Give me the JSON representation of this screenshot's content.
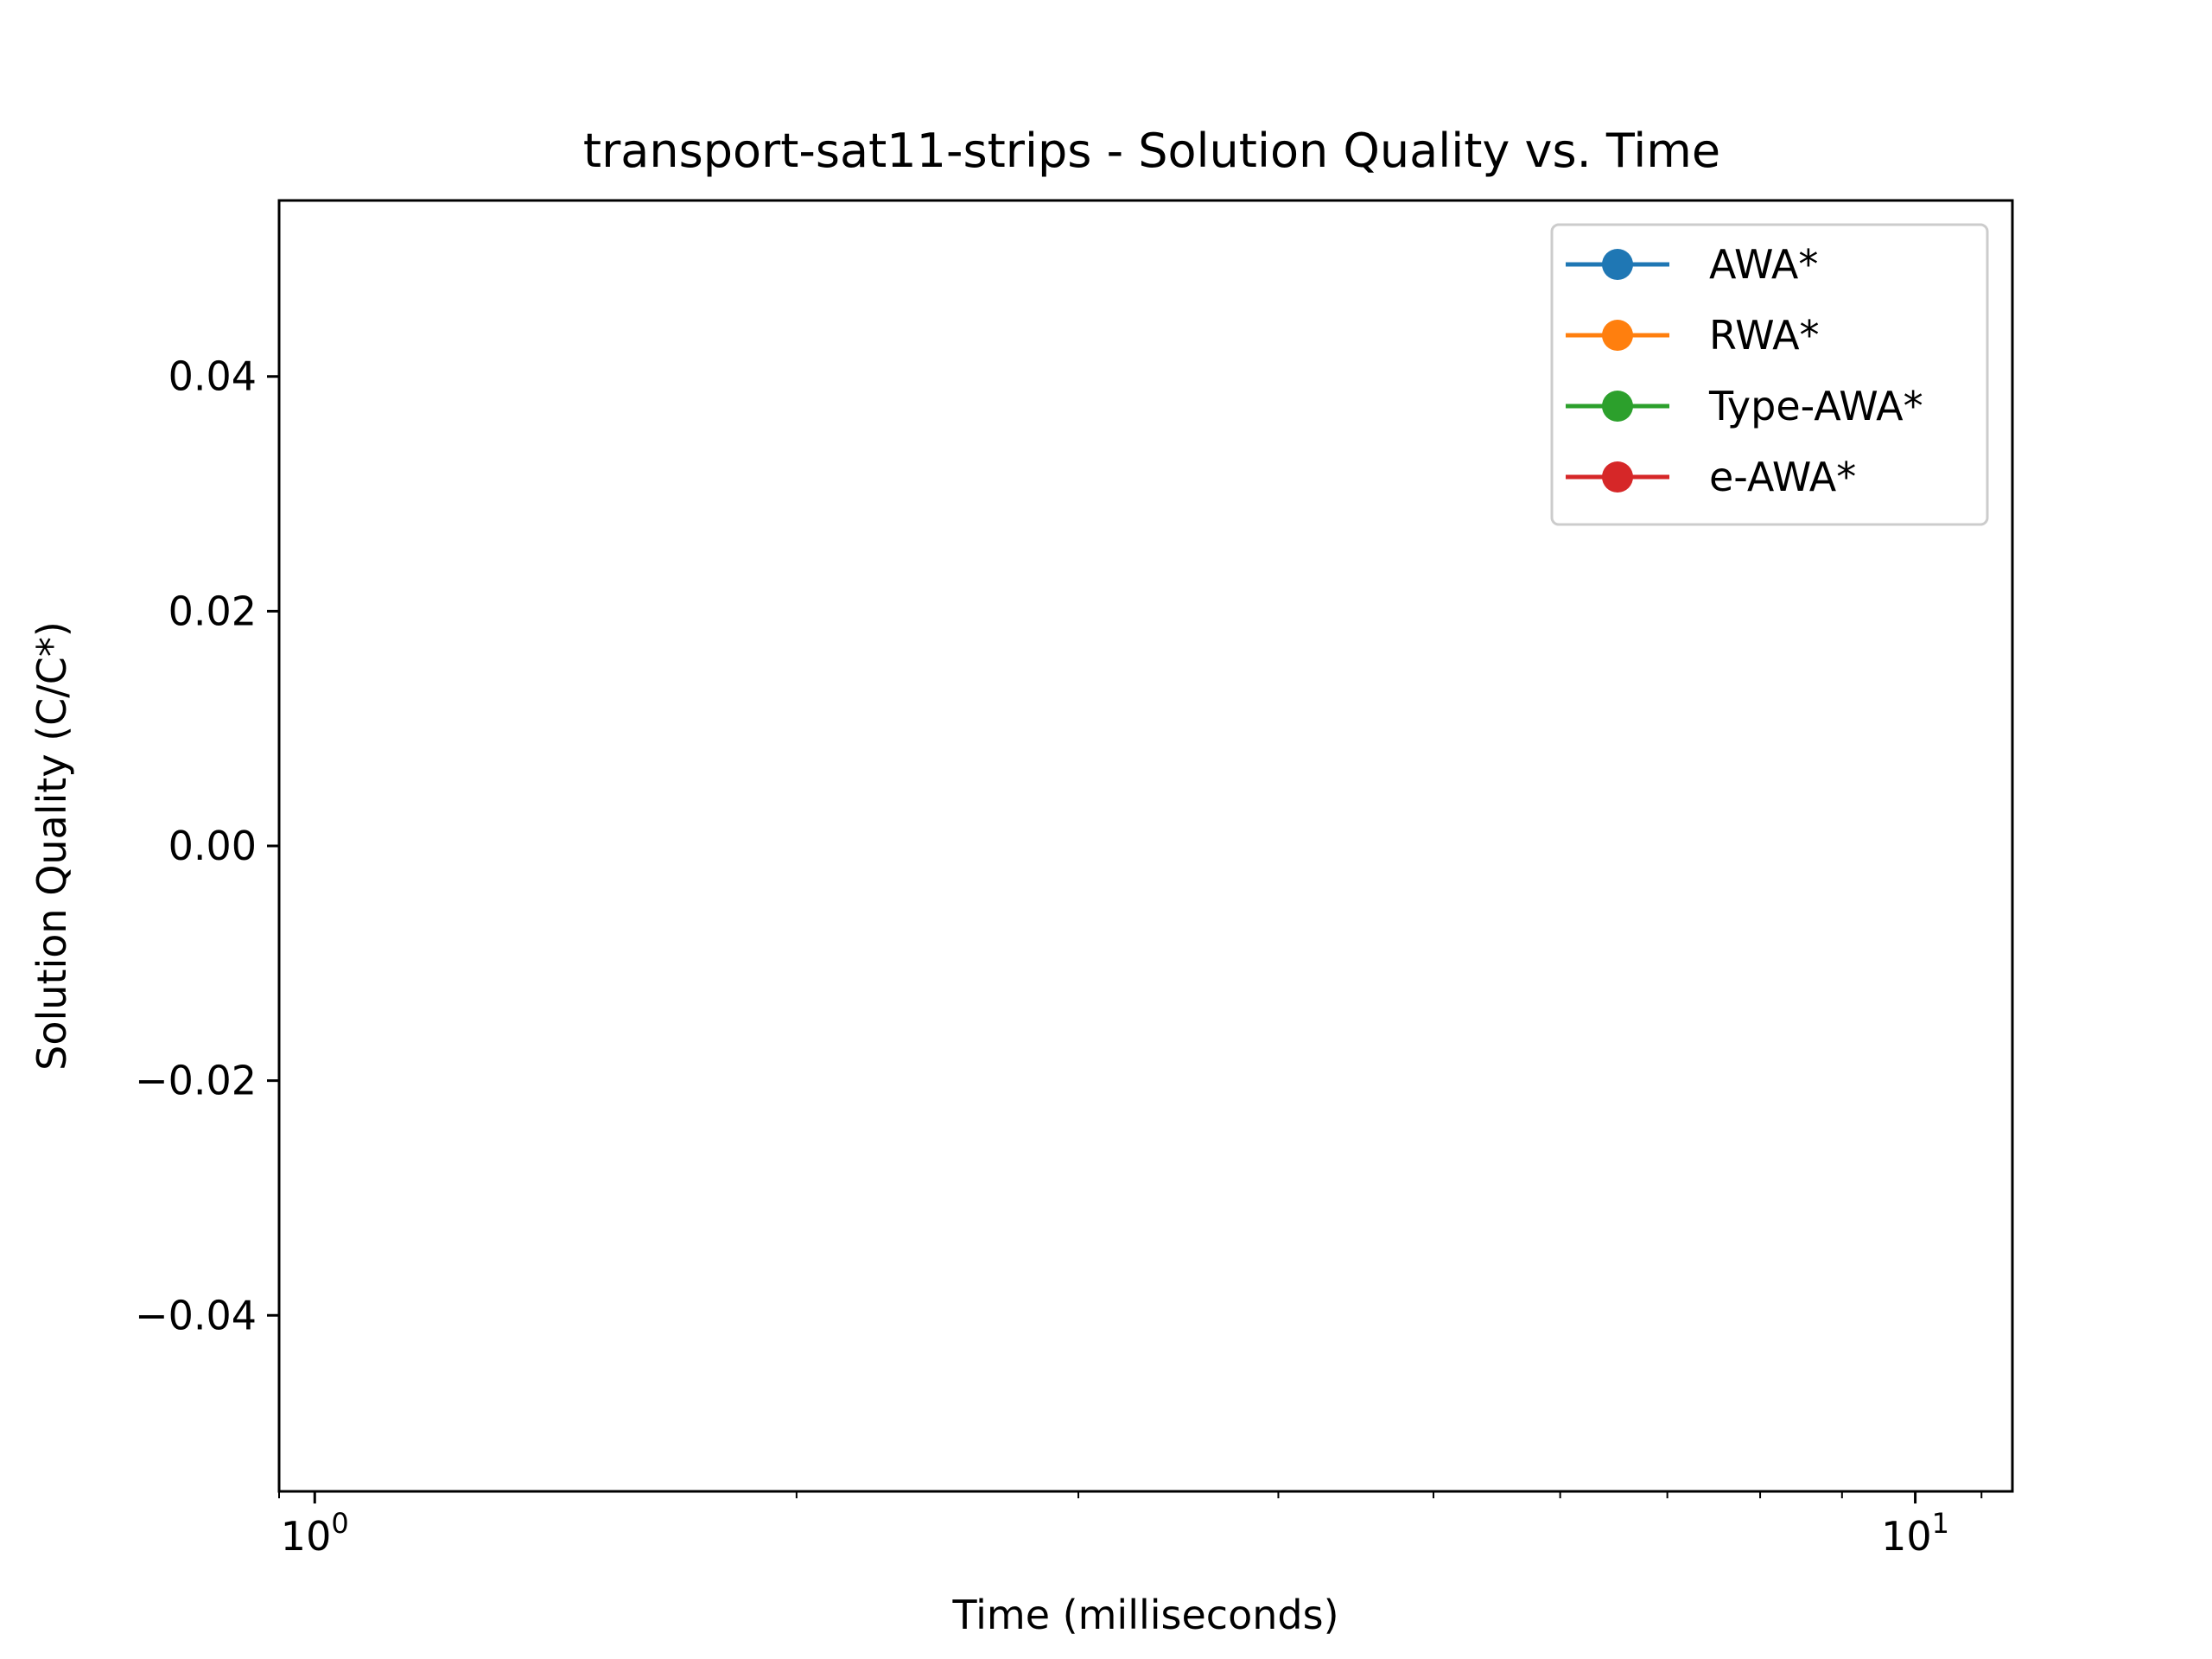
{
  "chart_data": {
    "type": "line",
    "title": "transport-sat11-strips - Solution Quality vs. Time",
    "xlabel": "Time (milliseconds)",
    "ylabel": "Solution Quality (C/C*)",
    "xscale": "log",
    "xlim": [
      0.95,
      11.5
    ],
    "ylim": [
      -0.055,
      0.055
    ],
    "xticks_major": [
      {
        "value": 1,
        "base": "10",
        "exp": "0"
      },
      {
        "value": 10,
        "base": "10",
        "exp": "1"
      }
    ],
    "xticks_minor": [
      2,
      3,
      4,
      5,
      6,
      7,
      8,
      9
    ],
    "yticks": [
      {
        "value": 0.04,
        "label": "0.04"
      },
      {
        "value": 0.02,
        "label": "0.02"
      },
      {
        "value": 0.0,
        "label": "0.00"
      },
      {
        "value": -0.02,
        "label": "−0.02"
      },
      {
        "value": -0.04,
        "label": "−0.04"
      }
    ],
    "grid": false,
    "legend_position": "top-right",
    "series": [
      {
        "name": "AWA*",
        "color": "#1f77b4",
        "marker": "circle",
        "x": [],
        "y": []
      },
      {
        "name": "RWA*",
        "color": "#ff7f0e",
        "marker": "circle",
        "x": [],
        "y": []
      },
      {
        "name": "Type-AWA*",
        "color": "#2ca02c",
        "marker": "circle",
        "x": [],
        "y": []
      },
      {
        "name": "e-AWA*",
        "color": "#d62728",
        "marker": "circle",
        "x": [],
        "y": []
      }
    ]
  }
}
